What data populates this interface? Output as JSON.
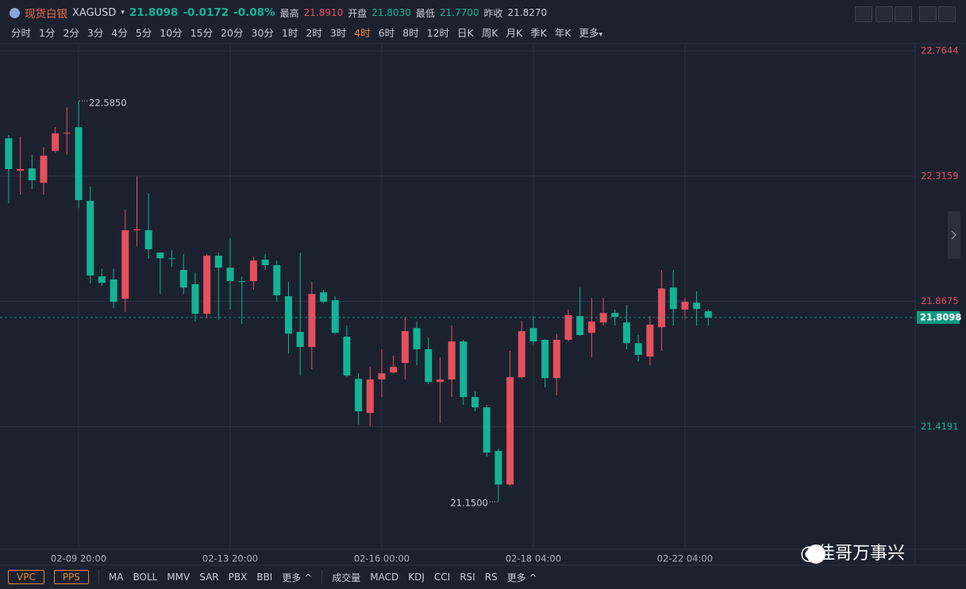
{
  "header": {
    "name": "现货白银",
    "symbol": "XAGUSD",
    "price": "21.8098",
    "change": "-0.0172",
    "change_pct": "-0.08%",
    "high_label": "最高",
    "high": "21.8910",
    "open_label": "开盘",
    "open": "21.8030",
    "low_label": "最低",
    "low": "21.7700",
    "prev_label": "昨收",
    "prev": "21.8270"
  },
  "toolbar": {
    "timeframes": [
      "分时",
      "1分",
      "2分",
      "3分",
      "4分",
      "5分",
      "10分",
      "15分",
      "20分",
      "30分",
      "1时",
      "2时",
      "3时",
      "4时",
      "6时",
      "8时",
      "12时",
      "日K",
      "周K",
      "月K",
      "季K",
      "年K",
      "更多"
    ],
    "active_timeframe": "4时"
  },
  "indicators": {
    "boxed": [
      "VPC",
      "PPS"
    ],
    "main": [
      "MA",
      "BOLL",
      "MMV",
      "SAR",
      "PBX",
      "BBI",
      "更多"
    ],
    "sub": [
      "成交量",
      "MACD",
      "KDJ",
      "CCI",
      "RSI",
      "RS",
      "更多"
    ]
  },
  "watermark": "@佳哥万事兴",
  "chart_data": {
    "type": "candlestick",
    "up_color": "#e5505c",
    "down_color": "#14b394",
    "categories": [
      null,
      null,
      null,
      null,
      null,
      null,
      "02-09 20:00",
      null,
      null,
      null,
      null,
      null,
      null,
      null,
      null,
      null,
      null,
      null,
      null,
      "02-13 20:00",
      null,
      null,
      null,
      null,
      null,
      null,
      null,
      null,
      null,
      null,
      null,
      null,
      "02-16 00:00",
      null,
      null,
      null,
      null,
      null,
      null,
      null,
      null,
      null,
      null,
      null,
      null,
      "02-18 04:00",
      null,
      null,
      null,
      null,
      null,
      null,
      null,
      null,
      null,
      null,
      null,
      null,
      "02-22 04:00",
      null,
      null
    ],
    "open": [
      22.451,
      22.335,
      22.344,
      22.292,
      22.406,
      22.469,
      22.491,
      22.227,
      21.957,
      21.946,
      21.877,
      22.122,
      22.122,
      22.042,
      22.022,
      21.98,
      21.929,
      21.823,
      22.031,
      21.988,
      21.94,
      21.94,
      22.017,
      21.997,
      21.886,
      21.758,
      21.704,
      21.9,
      21.872,
      21.741,
      21.59,
      21.468,
      21.588,
      21.613,
      21.647,
      21.772,
      21.696,
      21.579,
      21.588,
      21.724,
      21.525,
      21.488,
      21.332,
      21.212,
      21.596,
      21.772,
      21.73,
      21.593,
      21.73,
      21.815,
      21.755,
      21.792,
      21.826,
      21.792,
      21.718,
      21.67,
      21.775,
      21.917,
      21.838,
      21.863,
      21.832
    ],
    "high": [
      22.463,
      22.457,
      22.392,
      22.42,
      22.491,
      22.562,
      22.585,
      22.278,
      21.985,
      21.985,
      22.196,
      22.315,
      22.255,
      22.042,
      22.051,
      22.037,
      21.971,
      22.037,
      22.042,
      22.093,
      21.957,
      22.028,
      22.037,
      22.014,
      21.937,
      22.042,
      21.937,
      21.909,
      21.886,
      21.781,
      21.61,
      21.633,
      21.696,
      21.673,
      21.809,
      21.795,
      21.738,
      21.667,
      21.781,
      21.73,
      21.545,
      21.497,
      21.34,
      21.69,
      21.798,
      21.815,
      21.732,
      21.752,
      21.838,
      21.917,
      21.88,
      21.88,
      21.838,
      21.855,
      21.747,
      21.815,
      21.98,
      21.98,
      21.88,
      21.903,
      21.838
    ],
    "low": [
      22.218,
      22.25,
      22.27,
      22.25,
      22.4,
      22.392,
      22.201,
      21.931,
      21.923,
      21.843,
      21.829,
      22.065,
      22.02,
      21.894,
      21.991,
      21.894,
      21.795,
      21.806,
      21.801,
      21.838,
      21.786,
      21.909,
      21.98,
      21.866,
      21.681,
      21.602,
      21.625,
      21.86,
      21.752,
      21.596,
      21.426,
      21.42,
      21.525,
      21.61,
      21.588,
      21.639,
      21.571,
      21.431,
      21.525,
      21.497,
      21.474,
      21.312,
      21.15,
      21.207,
      21.593,
      21.713,
      21.559,
      21.531,
      21.724,
      21.744,
      21.667,
      21.781,
      21.781,
      21.696,
      21.653,
      21.639,
      21.69,
      21.781,
      21.803,
      21.781,
      21.781
    ],
    "close": [
      22.341,
      22.341,
      22.301,
      22.389,
      22.469,
      22.471,
      22.23,
      21.96,
      21.934,
      21.866,
      22.122,
      22.125,
      22.054,
      22.022,
      22.02,
      21.917,
      21.823,
      22.031,
      21.988,
      21.94,
      21.937,
      22.014,
      21.997,
      21.889,
      21.752,
      21.704,
      21.894,
      21.866,
      21.755,
      21.602,
      21.474,
      21.588,
      21.61,
      21.633,
      21.761,
      21.696,
      21.579,
      21.588,
      21.724,
      21.525,
      21.488,
      21.326,
      21.212,
      21.596,
      21.761,
      21.724,
      21.593,
      21.73,
      21.818,
      21.747,
      21.795,
      21.826,
      21.812,
      21.718,
      21.676,
      21.784,
      21.914,
      21.84,
      21.866,
      21.84,
      21.8098
    ],
    "max_label": "22.5850",
    "min_label": "21.1500",
    "last_price": 21.8098,
    "ylim": [
      20.98,
      22.79
    ],
    "yticks": [
      22.7644,
      22.3159,
      21.8675,
      21.4191
    ],
    "grid": true
  }
}
